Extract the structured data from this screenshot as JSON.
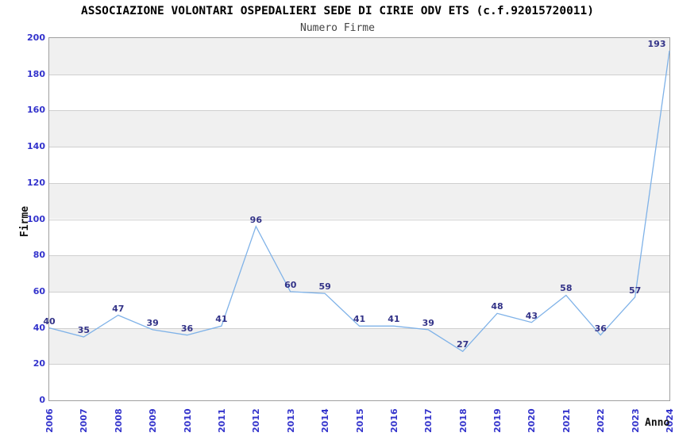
{
  "chart_data": {
    "type": "line",
    "title": "ASSOCIAZIONE VOLONTARI OSPEDALIERI SEDE DI CIRIE ODV ETS (c.f.92015720011)",
    "subtitle": "Numero Firme",
    "xlabel": "Anno",
    "ylabel": "Firme",
    "x": [
      "2006",
      "2007",
      "2008",
      "2009",
      "2010",
      "2011",
      "2012",
      "2013",
      "2014",
      "2015",
      "2016",
      "2017",
      "2018",
      "2019",
      "2020",
      "2021",
      "2022",
      "2023",
      "2024"
    ],
    "values": [
      40,
      35,
      47,
      39,
      36,
      41,
      96,
      60,
      59,
      41,
      41,
      39,
      27,
      48,
      43,
      58,
      36,
      57,
      193
    ],
    "ylim": [
      0,
      200
    ],
    "ytick_step": 20,
    "grid": "horizontal gridlines every 20 with alternating white/gray bands",
    "legend": "none",
    "point_labels_shown": true,
    "colors": {
      "line": "#7FB2E8",
      "point_label": "#333388",
      "tick_label": "#3333CC",
      "band_gray": "#F0F0F0",
      "band_white": "#FFFFFF",
      "gridline": "#CFCFCF",
      "plot_border": "#A0A0A0",
      "title": "#000000",
      "subtitle": "#444444",
      "axis_title": "#111111"
    }
  }
}
